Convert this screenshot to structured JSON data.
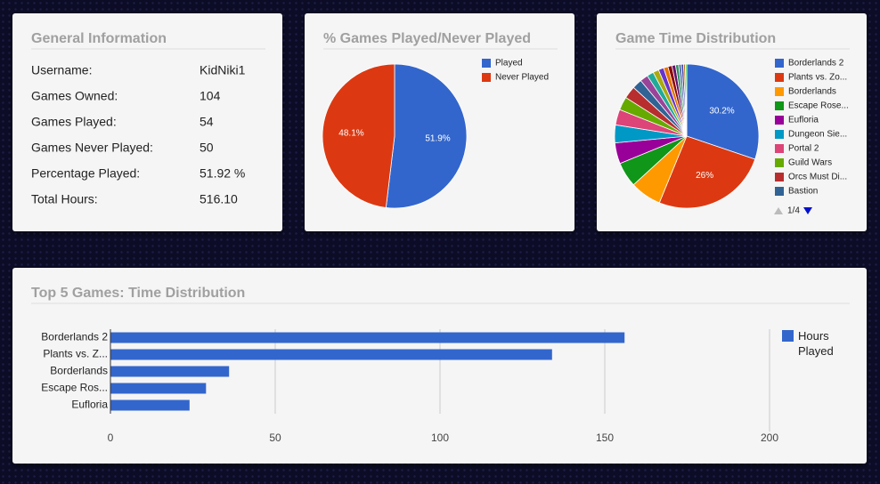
{
  "general": {
    "title": "General Information",
    "rows": [
      [
        "Username:",
        "KidNiki1"
      ],
      [
        "Games Owned:",
        "104"
      ],
      [
        "Games Played:",
        "54"
      ],
      [
        "Games Never Played:",
        "50"
      ],
      [
        "Percentage Played:",
        "51.92 %"
      ],
      [
        "Total Hours:",
        "516.10"
      ]
    ]
  },
  "chart_data": [
    {
      "type": "pie",
      "title": "% Games Played/Never Played",
      "categories": [
        "Played",
        "Never Played"
      ],
      "values": [
        51.9,
        48.1
      ],
      "value_labels": [
        "51.9%",
        "48.1%"
      ],
      "colors": [
        "#3366cc",
        "#dc3912"
      ]
    },
    {
      "type": "pie",
      "title": "Game Time Distribution",
      "categories": [
        "Borderlands 2",
        "Plants vs. Zo...",
        "Borderlands",
        "Escape Rose...",
        "Eufloria",
        "Dungeon Sie...",
        "Portal 2",
        "Guild Wars",
        "Orcs Must Di...",
        "Bastion",
        null,
        null,
        null,
        null,
        null,
        null,
        null,
        null,
        null,
        null,
        null,
        null
      ],
      "values": [
        30.2,
        26,
        7.0,
        5.6,
        4.7,
        4.0,
        3.5,
        3.0,
        2.8,
        2.2,
        1.8,
        1.5,
        1.3,
        1.2,
        1.0,
        0.9,
        0.8,
        0.7,
        0.6,
        0.5,
        0.4,
        0.3
      ],
      "value_labels": [
        "30.2%",
        "26%",
        null,
        null,
        null,
        null,
        null,
        null,
        null,
        null,
        null,
        null,
        null,
        null,
        null,
        null,
        null,
        null,
        null,
        null,
        null,
        null
      ],
      "colors": [
        "#3366cc",
        "#dc3912",
        "#ff9900",
        "#109618",
        "#990099",
        "#0099c6",
        "#dd4477",
        "#66aa00",
        "#b82e2e",
        "#316395",
        "#994499",
        "#22aa99",
        "#aaaa11",
        "#6633cc",
        "#e67300",
        "#8b0707",
        "#651067",
        "#329262",
        "#5574a6",
        "#3b3eac",
        "#b77322",
        "#16d620"
      ],
      "legend_page": "1/4"
    },
    {
      "type": "bar",
      "orientation": "horizontal",
      "title": "Top 5 Games: Time Distribution",
      "categories": [
        "Borderlands 2",
        "Plants vs. Z...",
        "Borderlands",
        "Escape Ros...",
        "Eufloria"
      ],
      "series": [
        {
          "name": "Hours Played",
          "color": "#3366cc",
          "values": [
            156,
            134,
            36,
            29,
            24
          ]
        }
      ],
      "xlim": [
        0,
        200
      ],
      "xticks": [
        0,
        50,
        100,
        150,
        200
      ],
      "grid": true,
      "legend": "right"
    }
  ]
}
